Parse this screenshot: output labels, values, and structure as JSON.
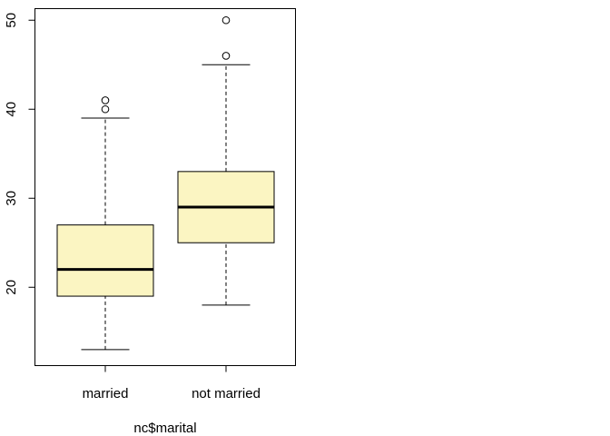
{
  "chart_data": {
    "type": "boxplot",
    "title": "",
    "xlabel": "nc$marital",
    "ylabel": "",
    "categories": [
      "married",
      "not married"
    ],
    "ylim": [
      11.2,
      51.3
    ],
    "yticks": [
      "20",
      "30",
      "40",
      "50"
    ],
    "box_color": "#FBF5C2",
    "line_color": "#000000",
    "series": [
      {
        "category": "married",
        "whisker_low": 13,
        "q1": 19,
        "median": 22,
        "q3": 27,
        "whisker_high": 39,
        "outliers": [
          40,
          41
        ]
      },
      {
        "category": "not married",
        "whisker_low": 18,
        "q1": 25,
        "median": 29,
        "q3": 33,
        "whisker_high": 45,
        "outliers": [
          46,
          50
        ]
      }
    ]
  }
}
